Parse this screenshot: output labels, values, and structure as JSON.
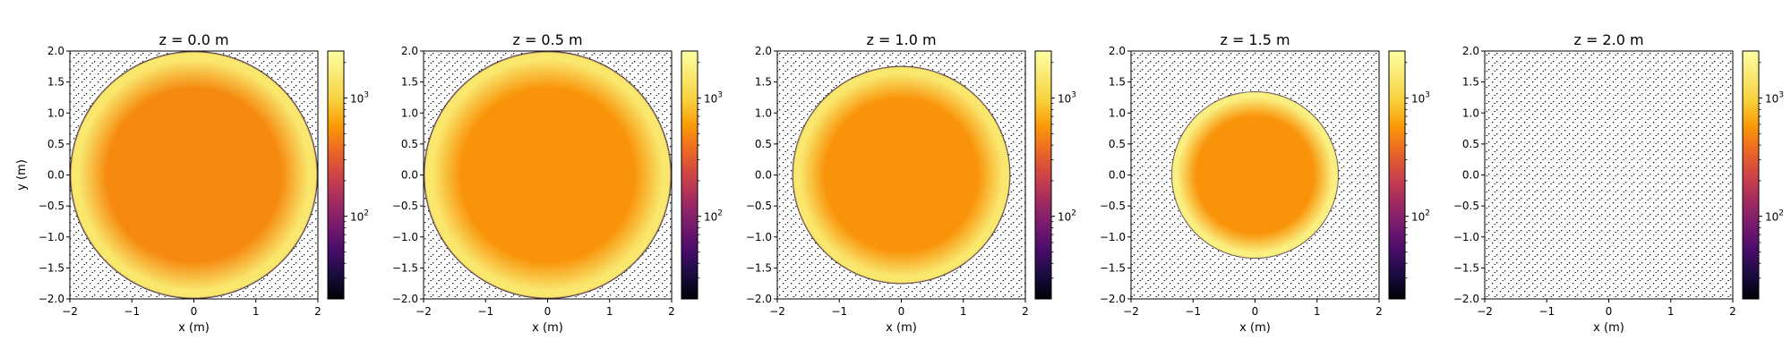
{
  "chart_data": {
    "type": "heatmap",
    "colormap": "inferno",
    "color_scale": "log",
    "colorbar_ticks": [
      {
        "value": 100,
        "base": "10",
        "exp": "2"
      },
      {
        "value": 1000,
        "base": "10",
        "exp": "3"
      }
    ],
    "colorbar_range": [
      20,
      2500
    ],
    "xlabel": "x (m)",
    "ylabel": "y (m)",
    "xlim": [
      -2,
      2
    ],
    "ylim": [
      -2,
      2
    ],
    "xticks": [
      {
        "value": -2,
        "label": "−2"
      },
      {
        "value": -1,
        "label": "−1"
      },
      {
        "value": 0,
        "label": "0"
      },
      {
        "value": 1,
        "label": "1"
      },
      {
        "value": 2,
        "label": "2"
      }
    ],
    "yticks": [
      {
        "value": 2.0,
        "label": "2.0"
      },
      {
        "value": 1.5,
        "label": "1.5"
      },
      {
        "value": 1.0,
        "label": "1.0"
      },
      {
        "value": 0.5,
        "label": "0.5"
      },
      {
        "value": 0.0,
        "label": "0.0"
      },
      {
        "value": -0.5,
        "label": "−0.5"
      },
      {
        "value": -1.0,
        "label": "−1.0"
      },
      {
        "value": -1.5,
        "label": "−1.5"
      },
      {
        "value": -2.0,
        "label": "−2.0"
      }
    ],
    "panels": [
      {
        "title": "z = 0.0 m",
        "radius": 2.0,
        "center": [
          0.0,
          0.0
        ],
        "core_value": 500,
        "rim_value": 1500
      },
      {
        "title": "z = 0.5 m",
        "radius": 2.0,
        "center": [
          0.0,
          0.0
        ],
        "core_value": 550,
        "rim_value": 1500
      },
      {
        "title": "z = 1.0 m",
        "radius": 1.76,
        "center": [
          0.0,
          0.0
        ],
        "core_value": 550,
        "rim_value": 1500
      },
      {
        "title": "z = 1.5 m",
        "radius": 1.35,
        "center": [
          0.0,
          0.0
        ],
        "core_value": 550,
        "rim_value": 1800
      },
      {
        "title": "z = 2.0 m",
        "radius": 0,
        "center": [
          0.0,
          0.0
        ],
        "core_value": 0,
        "rim_value": 0
      }
    ]
  }
}
